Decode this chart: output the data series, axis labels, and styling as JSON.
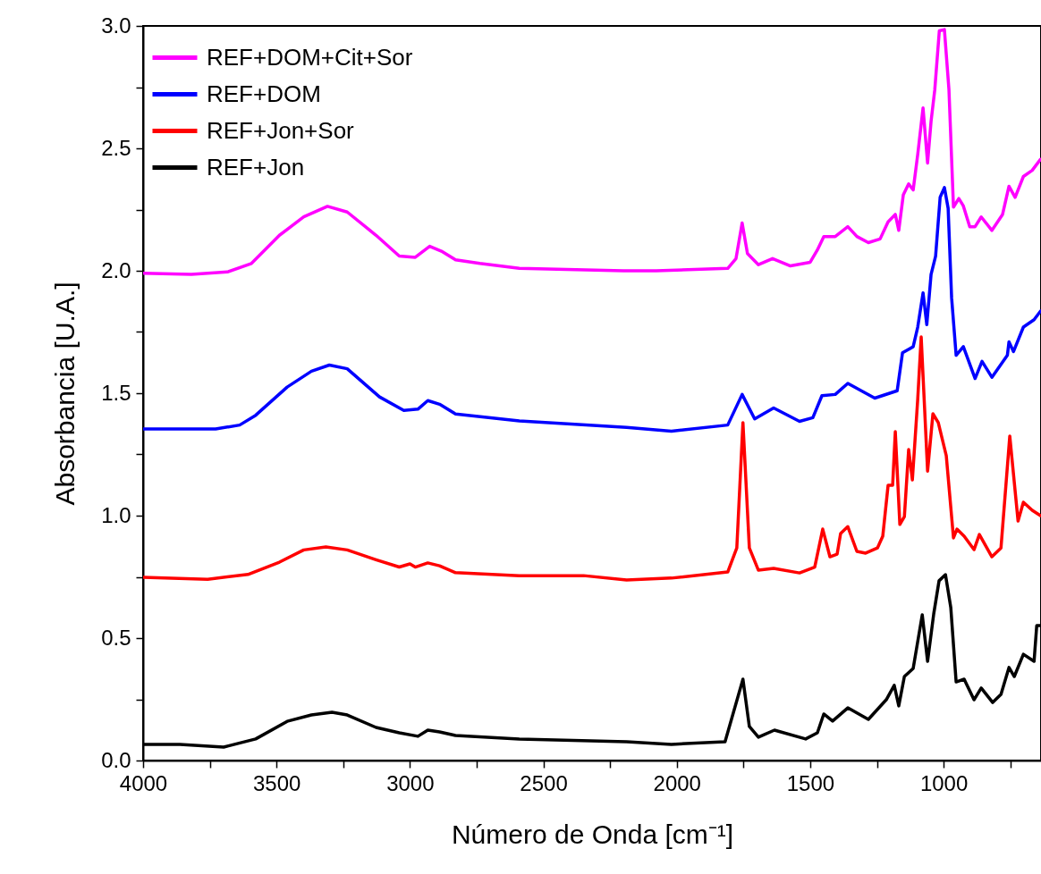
{
  "chart_data": {
    "type": "line",
    "xlabel": "Número de Onda [cm⁻¹]",
    "ylabel": "Absorbancia [U.A.]",
    "xlim": [
      4000,
      635
    ],
    "ylim": [
      0,
      3
    ],
    "xticks": [
      4000,
      {
        "value": 3750,
        "label": null
      },
      3500,
      {
        "value": 3250,
        "label": null
      },
      3000,
      {
        "value": 2750,
        "label": null
      },
      2500,
      {
        "value": 2250,
        "label": null
      },
      2000,
      {
        "value": 1750,
        "label": null
      },
      1500,
      {
        "value": 1250,
        "label": null
      },
      1000,
      {
        "value": 750,
        "label": null
      }
    ],
    "yticks": [
      {
        "value": 0,
        "label": "0.0"
      },
      {
        "value": 0.25,
        "label": null
      },
      {
        "value": 0.5,
        "label": "0.5"
      },
      {
        "value": 0.75,
        "label": null
      },
      {
        "value": 1,
        "label": "1.0"
      },
      {
        "value": 1.25,
        "label": null
      },
      {
        "value": 1.5,
        "label": "1.5"
      },
      {
        "value": 1.75,
        "label": null
      },
      {
        "value": 2,
        "label": "2.0"
      },
      {
        "value": 2.25,
        "label": null
      },
      {
        "value": 2.5,
        "label": "2.5"
      },
      {
        "value": 2.75,
        "label": null
      },
      {
        "value": 3,
        "label": "3.0"
      }
    ],
    "grid": false,
    "legend": "top left",
    "line_style": "solid",
    "series": [
      {
        "name": "REF+DOM+Cit+Sor",
        "color": "#ff00ff",
        "x": [
          4000,
          3819,
          3684,
          3594,
          3489,
          3398,
          3309,
          3235,
          3127,
          3040,
          2980,
          2926,
          2882,
          2829,
          2738,
          2590,
          2200,
          2077,
          1809,
          1778,
          1755,
          1735,
          1694,
          1641,
          1574,
          1500,
          1473,
          1449,
          1406,
          1359,
          1325,
          1282,
          1238,
          1208,
          1181,
          1168,
          1151,
          1131,
          1114,
          1097,
          1077,
          1060,
          1047,
          1033,
          1016,
          997,
          980,
          963,
          943,
          926,
          902,
          882,
          859,
          819,
          779,
          755,
          732,
          701,
          668,
          637
        ],
        "values": [
          1.99,
          1.985,
          1.995,
          2.03,
          2.145,
          2.22,
          2.263,
          2.24,
          2.145,
          2.06,
          2.055,
          2.1,
          2.08,
          2.045,
          2.03,
          2.01,
          2.0,
          2.0,
          2.01,
          2.05,
          2.195,
          2.07,
          2.025,
          2.05,
          2.02,
          2.035,
          2.085,
          2.14,
          2.14,
          2.18,
          2.14,
          2.115,
          2.13,
          2.2,
          2.23,
          2.165,
          2.31,
          2.355,
          2.33,
          2.475,
          2.665,
          2.44,
          2.61,
          2.74,
          2.98,
          2.985,
          2.74,
          2.26,
          2.295,
          2.265,
          2.18,
          2.18,
          2.22,
          2.165,
          2.23,
          2.345,
          2.3,
          2.385,
          2.41,
          2.455
        ]
      },
      {
        "name": "REF+DOM",
        "color": "#0000ff",
        "x": [
          4000,
          3728,
          3638,
          3578,
          3460,
          3369,
          3302,
          3235,
          3114,
          3023,
          2970,
          2933,
          2889,
          2829,
          2590,
          2188,
          2020,
          1809,
          1755,
          1708,
          1637,
          1540,
          1490,
          1456,
          1406,
          1359,
          1258,
          1174,
          1154,
          1114,
          1097,
          1077,
          1063,
          1047,
          1030,
          1013,
          997,
          983,
          970,
          953,
          926,
          882,
          856,
          819,
          761,
          755,
          738,
          701,
          661,
          637
        ],
        "values": [
          1.354,
          1.354,
          1.37,
          1.41,
          1.525,
          1.59,
          1.615,
          1.6,
          1.485,
          1.43,
          1.435,
          1.47,
          1.455,
          1.415,
          1.387,
          1.36,
          1.345,
          1.37,
          1.495,
          1.395,
          1.44,
          1.385,
          1.4,
          1.49,
          1.495,
          1.54,
          1.48,
          1.51,
          1.665,
          1.69,
          1.77,
          1.91,
          1.78,
          1.985,
          2.06,
          2.3,
          2.34,
          2.255,
          1.89,
          1.655,
          1.69,
          1.56,
          1.63,
          1.565,
          1.655,
          1.71,
          1.67,
          1.77,
          1.8,
          1.835
        ]
      },
      {
        "name": "REF+Jon+Sor",
        "color": "#ff0000",
        "x": [
          4000,
          3758,
          3607,
          3489,
          3398,
          3315,
          3235,
          3127,
          3040,
          3000,
          2980,
          2933,
          2889,
          2829,
          2590,
          2349,
          2188,
          2020,
          1809,
          1775,
          1752,
          1728,
          1694,
          1637,
          1540,
          1483,
          1453,
          1426,
          1399,
          1386,
          1359,
          1325,
          1292,
          1248,
          1228,
          1208,
          1191,
          1181,
          1164,
          1147,
          1131,
          1117,
          1097,
          1084,
          1060,
          1040,
          1020,
          990,
          963,
          950,
          923,
          886,
          866,
          819,
          785,
          752,
          721,
          701,
          668,
          637
        ],
        "values": [
          0.748,
          0.74,
          0.76,
          0.81,
          0.86,
          0.872,
          0.86,
          0.82,
          0.79,
          0.803,
          0.79,
          0.807,
          0.795,
          0.767,
          0.755,
          0.755,
          0.737,
          0.745,
          0.77,
          0.868,
          1.38,
          0.868,
          0.777,
          0.785,
          0.766,
          0.79,
          0.945,
          0.832,
          0.843,
          0.927,
          0.955,
          0.854,
          0.847,
          0.868,
          0.916,
          1.124,
          1.124,
          1.343,
          0.964,
          0.996,
          1.27,
          1.146,
          1.475,
          1.73,
          1.182,
          1.416,
          1.38,
          1.245,
          0.909,
          0.945,
          0.916,
          0.861,
          0.923,
          0.832,
          0.868,
          1.325,
          0.978,
          1.055,
          1.022,
          1.0
        ]
      },
      {
        "name": "REF+Jon",
        "color": "#000000",
        "x": [
          4000,
          3862,
          3698,
          3578,
          3460,
          3369,
          3292,
          3235,
          3127,
          3040,
          2970,
          2933,
          2889,
          2829,
          2590,
          2188,
          2020,
          1819,
          1752,
          1728,
          1694,
          1634,
          1517,
          1473,
          1449,
          1416,
          1359,
          1282,
          1215,
          1185,
          1168,
          1147,
          1114,
          1080,
          1060,
          1037,
          1017,
          993,
          973,
          953,
          923,
          886,
          859,
          816,
          785,
          755,
          735,
          701,
          661,
          651,
          637
        ],
        "values": [
          0.066,
          0.066,
          0.055,
          0.088,
          0.16,
          0.186,
          0.197,
          0.186,
          0.135,
          0.113,
          0.099,
          0.124,
          0.117,
          0.102,
          0.088,
          0.077,
          0.066,
          0.077,
          0.332,
          0.139,
          0.095,
          0.124,
          0.088,
          0.113,
          0.19,
          0.161,
          0.215,
          0.168,
          0.248,
          0.307,
          0.223,
          0.343,
          0.376,
          0.595,
          0.405,
          0.599,
          0.734,
          0.759,
          0.624,
          0.321,
          0.332,
          0.248,
          0.296,
          0.237,
          0.27,
          0.38,
          0.343,
          0.434,
          0.405,
          0.551,
          0.551
        ]
      }
    ]
  }
}
